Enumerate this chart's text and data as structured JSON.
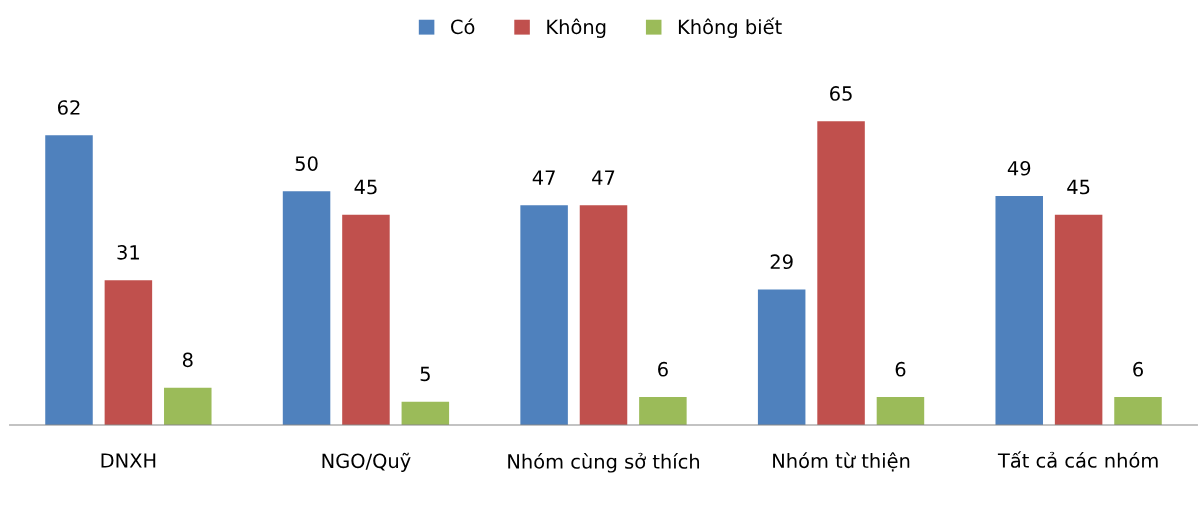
{
  "chart_data": {
    "type": "bar",
    "categories": [
      "DNXH",
      "NGO/Quỹ",
      "Nhóm cùng sở thích",
      "Nhóm từ thiện",
      "Tất cả các nhóm"
    ],
    "series": [
      {
        "name": "Có",
        "color": "#4f81bd",
        "values": [
          62,
          50,
          47,
          29,
          49
        ]
      },
      {
        "name": "Không",
        "color": "#c0504d",
        "values": [
          31,
          45,
          47,
          65,
          45
        ]
      },
      {
        "name": "Không biết",
        "color": "#9bbb59",
        "values": [
          8,
          5,
          6,
          6,
          6
        ]
      }
    ],
    "data_labels": true,
    "legend": "top",
    "grid": false
  }
}
